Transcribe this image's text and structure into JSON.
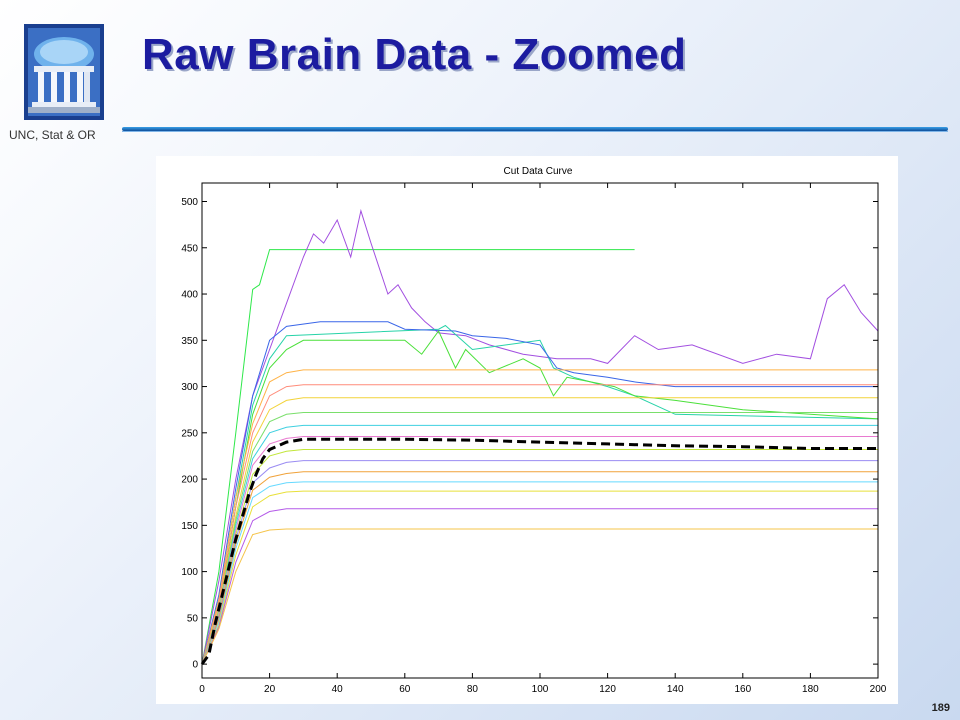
{
  "slide": {
    "title": "Raw Brain Data - Zoomed",
    "org": "UNC, Stat & OR",
    "page": "189"
  },
  "colors": {
    "title": "#1c1ca0",
    "mean_curve": "#000000",
    "rule": "#1a6fc4"
  },
  "chart_data": {
    "type": "line",
    "title": "Cut Data Curve",
    "xlabel": "",
    "ylabel": "",
    "xlim": [
      0,
      200
    ],
    "ylim": [
      -15,
      520
    ],
    "x_ticks": [
      0,
      20,
      40,
      60,
      80,
      100,
      120,
      140,
      160,
      180,
      200
    ],
    "y_ticks": [
      0,
      50,
      100,
      150,
      200,
      250,
      300,
      350,
      400,
      450,
      500
    ],
    "grid": false,
    "legend": "none",
    "mean_curve": {
      "style": "dashed",
      "color": "#000000",
      "x": [
        0,
        2,
        4,
        6,
        8,
        10,
        12,
        14,
        16,
        18,
        20,
        25,
        30,
        40,
        60,
        80,
        100,
        120,
        140,
        160,
        180,
        200
      ],
      "y": [
        0,
        10,
        45,
        75,
        105,
        135,
        160,
        185,
        205,
        222,
        232,
        240,
        243,
        243,
        243,
        242,
        240,
        238,
        236,
        235,
        233,
        233
      ]
    },
    "series": [
      {
        "x": [
          0,
          5,
          10,
          15,
          17,
          20,
          128
        ],
        "y": [
          0,
          100,
          250,
          405,
          410,
          448,
          448
        ]
      },
      {
        "x": [
          0,
          5,
          10,
          15,
          20,
          25,
          30,
          33,
          36,
          40,
          44,
          47,
          50,
          55,
          58,
          62,
          66,
          70,
          78,
          85,
          95,
          105,
          115,
          120,
          128,
          135,
          145,
          160,
          170,
          180,
          185,
          190,
          195,
          200
        ],
        "y": [
          0,
          90,
          200,
          290,
          340,
          390,
          440,
          465,
          455,
          480,
          440,
          490,
          455,
          400,
          410,
          385,
          370,
          358,
          355,
          345,
          335,
          330,
          330,
          325,
          355,
          340,
          345,
          325,
          335,
          330,
          395,
          410,
          380,
          360
        ]
      },
      {
        "x": [
          0,
          5,
          10,
          15,
          20,
          25,
          70,
          72,
          80,
          90,
          100,
          104,
          110,
          120,
          128,
          140,
          200
        ],
        "y": [
          0,
          70,
          180,
          280,
          330,
          355,
          362,
          366,
          340,
          345,
          350,
          320,
          310,
          300,
          290,
          270,
          265
        ]
      },
      {
        "x": [
          0,
          5,
          10,
          15,
          20,
          25,
          35,
          40,
          55,
          60,
          75,
          80,
          90,
          100,
          105,
          110,
          120,
          128,
          140,
          160,
          200
        ],
        "y": [
          0,
          75,
          190,
          290,
          350,
          365,
          370,
          370,
          370,
          362,
          360,
          355,
          352,
          345,
          320,
          315,
          310,
          305,
          300,
          300,
          300
        ]
      },
      {
        "x": [
          0,
          5,
          10,
          15,
          20,
          25,
          30,
          60,
          65,
          70,
          75,
          78,
          85,
          95,
          100,
          104,
          108,
          115,
          122,
          128,
          140,
          160,
          180,
          200
        ],
        "y": [
          0,
          60,
          170,
          270,
          320,
          340,
          350,
          350,
          335,
          360,
          320,
          340,
          315,
          330,
          320,
          290,
          310,
          305,
          300,
          290,
          285,
          275,
          270,
          265
        ]
      },
      {
        "x": [
          0,
          5,
          10,
          15,
          20,
          25,
          30,
          200
        ],
        "y": [
          0,
          70,
          180,
          260,
          305,
          315,
          318,
          318
        ]
      },
      {
        "x": [
          0,
          5,
          10,
          15,
          20,
          25,
          30,
          200
        ],
        "y": [
          0,
          65,
          170,
          250,
          290,
          300,
          302,
          302
        ]
      },
      {
        "x": [
          0,
          5,
          10,
          15,
          20,
          25,
          30,
          200
        ],
        "y": [
          0,
          60,
          160,
          240,
          275,
          285,
          288,
          288
        ]
      },
      {
        "x": [
          0,
          5,
          10,
          15,
          20,
          25,
          30,
          200
        ],
        "y": [
          0,
          58,
          155,
          230,
          262,
          270,
          272,
          272
        ]
      },
      {
        "x": [
          0,
          5,
          10,
          15,
          20,
          25,
          30,
          200
        ],
        "y": [
          0,
          55,
          150,
          222,
          250,
          256,
          258,
          258
        ]
      },
      {
        "x": [
          0,
          5,
          10,
          15,
          20,
          25,
          30,
          200
        ],
        "y": [
          0,
          55,
          145,
          215,
          238,
          244,
          246,
          246
        ]
      },
      {
        "x": [
          0,
          5,
          10,
          15,
          20,
          25,
          30,
          200
        ],
        "y": [
          0,
          52,
          140,
          205,
          225,
          230,
          232,
          232
        ]
      },
      {
        "x": [
          0,
          5,
          10,
          15,
          20,
          25,
          30,
          200
        ],
        "y": [
          0,
          50,
          135,
          196,
          212,
          218,
          220,
          220
        ]
      },
      {
        "x": [
          0,
          5,
          10,
          15,
          20,
          25,
          30,
          200
        ],
        "y": [
          0,
          48,
          130,
          188,
          202,
          206,
          208,
          208
        ]
      },
      {
        "x": [
          0,
          5,
          10,
          15,
          20,
          25,
          30,
          200
        ],
        "y": [
          0,
          45,
          125,
          180,
          192,
          196,
          197,
          197
        ]
      },
      {
        "x": [
          0,
          5,
          10,
          15,
          20,
          25,
          30,
          200
        ],
        "y": [
          0,
          42,
          118,
          170,
          182,
          186,
          187,
          187
        ]
      },
      {
        "x": [
          0,
          5,
          10,
          15,
          20,
          25,
          30,
          200
        ],
        "y": [
          0,
          40,
          110,
          155,
          165,
          168,
          168,
          168
        ]
      },
      {
        "x": [
          0,
          5,
          10,
          15,
          20,
          25,
          30,
          200
        ],
        "y": [
          0,
          38,
          100,
          140,
          145,
          146,
          146,
          146
        ]
      }
    ]
  }
}
